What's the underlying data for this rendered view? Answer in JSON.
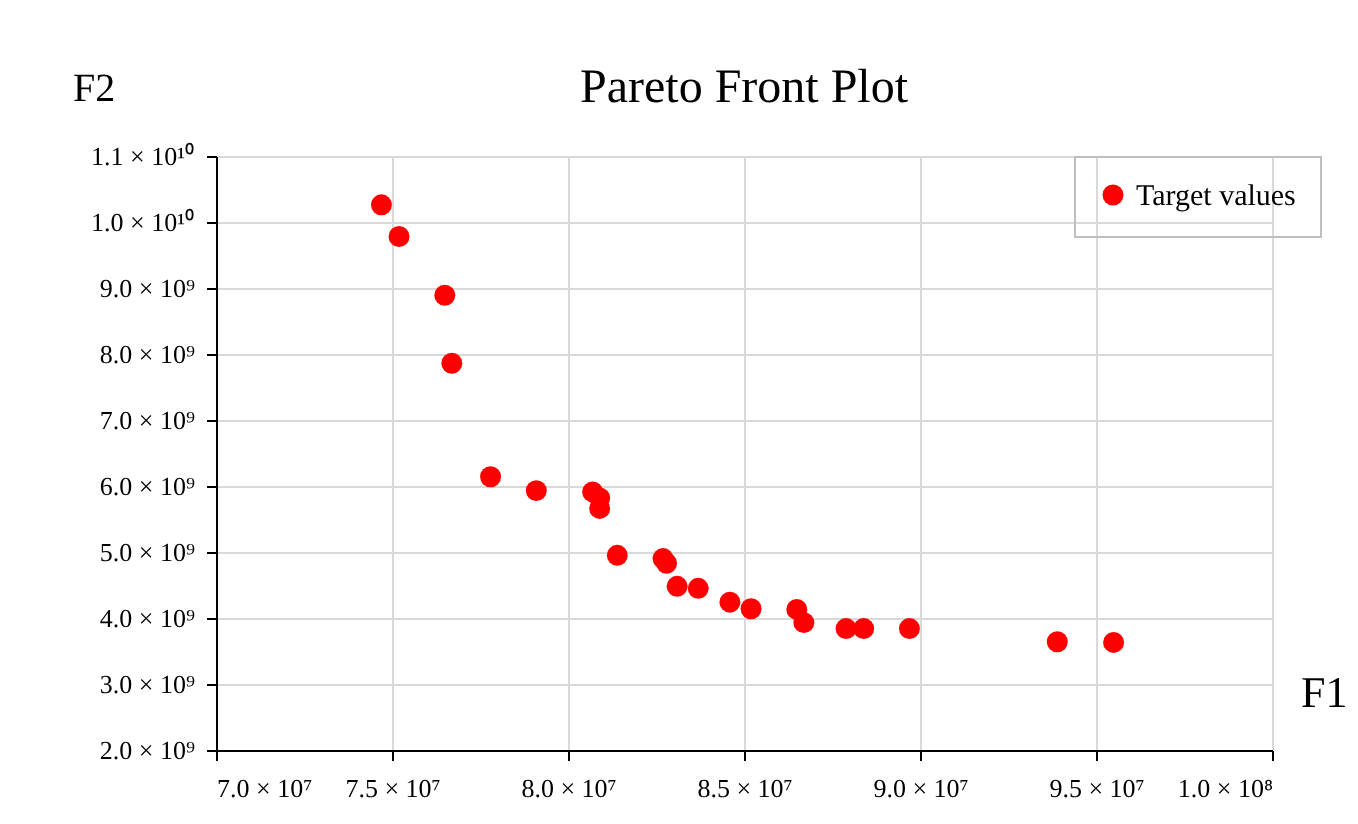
{
  "chart_data": {
    "type": "scatter",
    "title": "Pareto Front Plot",
    "xlabel": "F1",
    "ylabel": "F2",
    "x": [
      74700000,
      75200000,
      76500000,
      76700000,
      77800000,
      79100000,
      80700000,
      80900000,
      80900000,
      81400000,
      82700000,
      82800000,
      83100000,
      83700000,
      84600000,
      85200000,
      86500000,
      86700000,
      87900000,
      88400000,
      89700000,
      93900000,
      95500000
    ],
    "series": [
      {
        "name": "Target values",
        "color": "#ff0000",
        "values": [
          10260000000,
          9780000000,
          8890000000,
          7860000000,
          6140000000,
          5930000000,
          5910000000,
          5820000000,
          5660000000,
          4950000000,
          4900000000,
          4830000000,
          4480000000,
          4450000000,
          4240000000,
          4140000000,
          4130000000,
          3930000000,
          3840000000,
          3840000000,
          3840000000,
          3640000000,
          3630000000
        ]
      }
    ],
    "xlim": [
      70000000,
      100000000
    ],
    "xticks": [
      {
        "value": 70000000,
        "label": "7.0 × 10⁷"
      },
      {
        "value": 75000000,
        "label": "7.5 × 10⁷"
      },
      {
        "value": 80000000,
        "label": "8.0 × 10⁷"
      },
      {
        "value": 85000000,
        "label": "8.5 × 10⁷"
      },
      {
        "value": 90000000,
        "label": "9.0 × 10⁷"
      },
      {
        "value": 95000000,
        "label": "9.5 × 10⁷"
      },
      {
        "value": 100000000,
        "label": "1.0 × 10⁸"
      }
    ],
    "ylim": [
      2000000000,
      11000000000
    ],
    "yticks": [
      {
        "value": 2000000000,
        "label": "2.0 × 10⁹"
      },
      {
        "value": 3000000000,
        "label": "3.0 × 10⁹"
      },
      {
        "value": 4000000000,
        "label": "4.0 × 10⁹"
      },
      {
        "value": 5000000000,
        "label": "5.0 × 10⁹"
      },
      {
        "value": 6000000000,
        "label": "6.0 × 10⁹"
      },
      {
        "value": 7000000000,
        "label": "7.0 × 10⁹"
      },
      {
        "value": 8000000000,
        "label": "8.0 × 10⁹"
      },
      {
        "value": 9000000000,
        "label": "9.0 × 10⁹"
      },
      {
        "value": 10000000000,
        "label": "1.0 × 10¹⁰"
      },
      {
        "value": 11000000000,
        "label": "1.1 × 10¹⁰"
      }
    ],
    "grid": true,
    "legend": "top right",
    "marker": "circle"
  }
}
